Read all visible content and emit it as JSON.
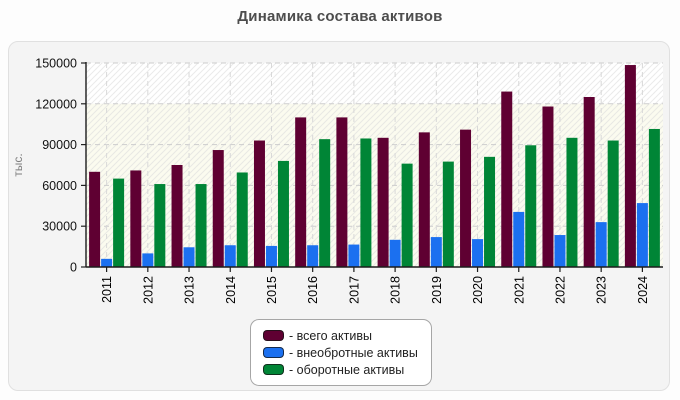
{
  "page": {
    "title": "Динамика состава активов"
  },
  "chart_data": {
    "type": "bar",
    "title": "Динамика состава активов",
    "xlabel": "",
    "ylabel": "тыс.",
    "ylim": [
      0,
      150000
    ],
    "yticks": [
      0,
      30000,
      60000,
      90000,
      120000,
      150000
    ],
    "grid": true,
    "legend_position": "bottom-center",
    "categories": [
      "2011",
      "2012",
      "2013",
      "2014",
      "2015",
      "2016",
      "2017",
      "2018",
      "2019",
      "2020",
      "2021",
      "2022",
      "2023",
      "2024"
    ],
    "series": [
      {
        "name": "всего активы",
        "legend_label": "- всего активы",
        "color": "#5f0032",
        "values": [
          70000,
          71000,
          75000,
          86000,
          93000,
          110000,
          110000,
          95000,
          99000,
          101000,
          129000,
          118000,
          125000,
          148500
        ]
      },
      {
        "name": "внеобротные активы",
        "legend_label": "- внеобротные активы",
        "color": "#1b70f0",
        "values": [
          6000,
          10000,
          14500,
          16000,
          15500,
          16000,
          16500,
          20000,
          22000,
          20500,
          40500,
          23500,
          33000,
          47000
        ]
      },
      {
        "name": "оборотные активы",
        "legend_label": "- оборотные активы",
        "color": "#008536",
        "values": [
          65000,
          61000,
          61000,
          69500,
          78000,
          94000,
          94500,
          76000,
          77500,
          81000,
          89500,
          95000,
          93000,
          101500
        ]
      }
    ],
    "background_bands": [
      {
        "from": 120000,
        "to": 150000,
        "color": "#ffffff"
      },
      {
        "from": 0,
        "to": 120000,
        "color": "#fbfbef"
      }
    ]
  }
}
